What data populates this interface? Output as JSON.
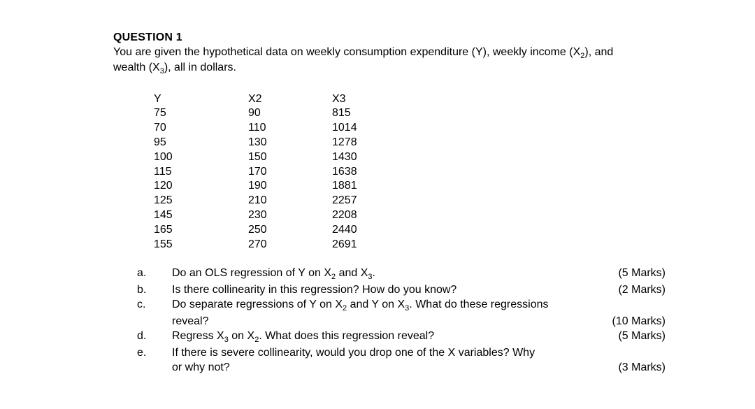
{
  "question": {
    "number_label": "QUESTION 1",
    "intro_pre": "You are given the hypothetical data on weekly consumption expenditure (Y), weekly income (X",
    "intro_sub1": "2",
    "intro_mid": "), and wealth (X",
    "intro_sub2": "3",
    "intro_post": "), all in dollars."
  },
  "table": {
    "headers": {
      "y": "Y",
      "x2": "X2",
      "x3": "X3"
    },
    "rows": [
      {
        "y": "75",
        "x2": "90",
        "x3": "815"
      },
      {
        "y": "70",
        "x2": "110",
        "x3": "1014"
      },
      {
        "y": "95",
        "x2": "130",
        "x3": "1278"
      },
      {
        "y": "100",
        "x2": "150",
        "x3": "1430"
      },
      {
        "y": "115",
        "x2": "170",
        "x3": "1638"
      },
      {
        "y": "120",
        "x2": "190",
        "x3": "1881"
      },
      {
        "y": "125",
        "x2": "210",
        "x3": "2257"
      },
      {
        "y": "145",
        "x2": "230",
        "x3": "2208"
      },
      {
        "y": "165",
        "x2": "250",
        "x3": "2440"
      },
      {
        "y": "155",
        "x2": "270",
        "x3": "2691"
      }
    ]
  },
  "parts": {
    "a": {
      "label": "a.",
      "t1": "Do an OLS regression of Y on X",
      "s1": "2",
      "t2": " and X",
      "s2": "3",
      "t3": ".",
      "marks": "(5 Marks)"
    },
    "b": {
      "label": "b.",
      "text": "Is there collinearity in this regression? How do you know?",
      "marks": "(2 Marks)"
    },
    "c": {
      "label": "c.",
      "t1": "Do separate regressions of Y on X",
      "s1": "2",
      "t2": " and Y on X",
      "s2": "3",
      "t3": ". What do these regressions",
      "line2": "reveal?",
      "marks": "(10 Marks)"
    },
    "d": {
      "label": "d.",
      "t1": "Regress X",
      "s1": "3",
      "t2": " on X",
      "s2": "2",
      "t3": ". What does this regression reveal?",
      "marks": "(5 Marks)"
    },
    "e": {
      "label": "e.",
      "line1": "If there is severe collinearity, would you drop one of the X variables? Why",
      "line2": "or why not?",
      "marks": "(3 Marks)"
    }
  }
}
